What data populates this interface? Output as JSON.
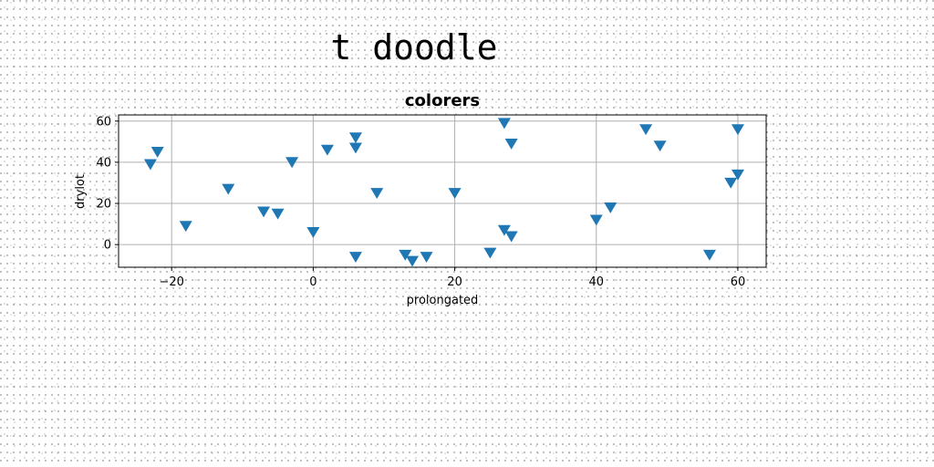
{
  "page_title": "t doodle",
  "colors": {
    "marker": "#1f77b4",
    "grid": "#b0b0b0",
    "axis": "#000000"
  },
  "chart_data": {
    "type": "scatter",
    "title": "colorers",
    "xlabel": "prolongated",
    "ylabel": "drylot",
    "xlim": [
      -27.5,
      64
    ],
    "ylim": [
      -11,
      63
    ],
    "xticks": [
      -20,
      0,
      20,
      40,
      60
    ],
    "yticks": [
      0,
      20,
      40,
      60
    ],
    "grid": true,
    "marker": "triangle-down",
    "points": [
      {
        "x": -23,
        "y": 39
      },
      {
        "x": -22,
        "y": 45
      },
      {
        "x": -18,
        "y": 9
      },
      {
        "x": -12,
        "y": 27
      },
      {
        "x": -7,
        "y": 16
      },
      {
        "x": -5,
        "y": 15
      },
      {
        "x": -3,
        "y": 40
      },
      {
        "x": 0,
        "y": 6
      },
      {
        "x": 2,
        "y": 46
      },
      {
        "x": 6,
        "y": 52
      },
      {
        "x": 6,
        "y": 47
      },
      {
        "x": 6,
        "y": -6
      },
      {
        "x": 9,
        "y": 25
      },
      {
        "x": 13,
        "y": -5
      },
      {
        "x": 14,
        "y": -8
      },
      {
        "x": 16,
        "y": -6
      },
      {
        "x": 20,
        "y": 25
      },
      {
        "x": 25,
        "y": -4
      },
      {
        "x": 27,
        "y": 59
      },
      {
        "x": 27,
        "y": 7
      },
      {
        "x": 28,
        "y": 49
      },
      {
        "x": 28,
        "y": 4
      },
      {
        "x": 40,
        "y": 12
      },
      {
        "x": 42,
        "y": 18
      },
      {
        "x": 47,
        "y": 56
      },
      {
        "x": 49,
        "y": 48
      },
      {
        "x": 56,
        "y": -5
      },
      {
        "x": 59,
        "y": 30
      },
      {
        "x": 60,
        "y": 56
      },
      {
        "x": 60,
        "y": 34
      }
    ]
  }
}
